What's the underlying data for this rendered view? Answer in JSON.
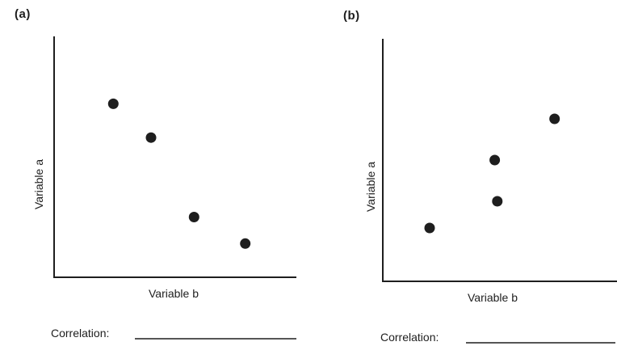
{
  "chart_data": [
    {
      "panel": "(a)",
      "type": "scatter",
      "xlabel": "Variable b",
      "ylabel": "Variable a",
      "x": [
        2.2,
        3.6,
        5.2,
        7.1
      ],
      "y": [
        7.2,
        5.8,
        2.5,
        1.4
      ],
      "xlim": [
        0,
        9
      ],
      "ylim": [
        0,
        10
      ],
      "grid": false,
      "tick_labels": false,
      "answer_label": "Correlation:",
      "answer_value": ""
    },
    {
      "panel": "(b)",
      "type": "scatter",
      "xlabel": "Variable b",
      "ylabel": "Variable a",
      "x": [
        1.8,
        4.3,
        4.4,
        6.6
      ],
      "y": [
        2.2,
        5.0,
        3.3,
        6.7
      ],
      "xlim": [
        0,
        9
      ],
      "ylim": [
        0,
        10
      ],
      "grid": false,
      "tick_labels": false,
      "answer_label": "Correlation:",
      "answer_value": ""
    }
  ],
  "colors": {
    "ink": "#1e1e1e",
    "background": "#ffffff"
  }
}
